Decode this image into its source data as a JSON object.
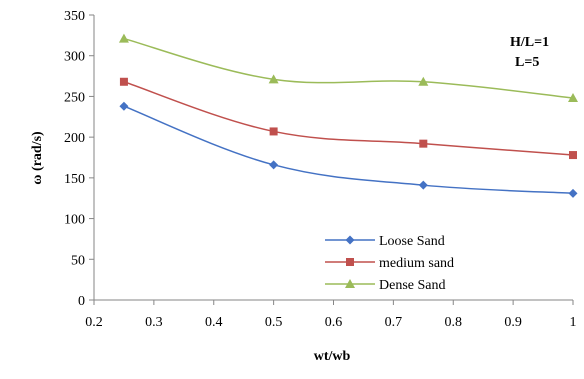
{
  "chart_data": {
    "type": "line",
    "title": "",
    "xlabel": "wt/wb",
    "ylabel": "ω (rad/s)",
    "xlim": [
      0.2,
      1.0
    ],
    "ylim": [
      0,
      350
    ],
    "xticks": [
      "0.2",
      "0.3",
      "0.4",
      "0.5",
      "0.6",
      "0.7",
      "0.8",
      "0.9",
      "1"
    ],
    "yticks": [
      "0",
      "50",
      "100",
      "150",
      "200",
      "250",
      "300",
      "350"
    ],
    "grid": false,
    "legend_position": "bottom-right",
    "annotations": [
      "H/L=1",
      "L=5"
    ],
    "x": [
      0.25,
      0.5,
      0.75,
      1.0
    ],
    "series": [
      {
        "name": "Loose Sand",
        "values": [
          238,
          166,
          141,
          131
        ],
        "color": "#4472C4",
        "marker": "diamond"
      },
      {
        "name": "medium sand",
        "values": [
          268,
          207,
          192,
          178
        ],
        "color": "#C0504D",
        "marker": "square"
      },
      {
        "name": "Dense Sand",
        "values": [
          321,
          271,
          268,
          248
        ],
        "color": "#9BBB59",
        "marker": "triangle"
      }
    ]
  }
}
